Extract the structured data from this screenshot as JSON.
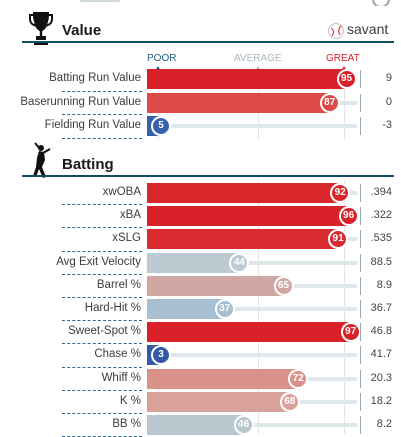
{
  "sections": {
    "value": {
      "title": "Value",
      "brand": "savant",
      "scale": {
        "poor": "POOR",
        "average": "AVERAGE",
        "great": "GREAT"
      },
      "rows": [
        {
          "label": "Batting Run Value",
          "percentile": 95,
          "value": "9",
          "color": "#d82129"
        },
        {
          "label": "Baserunning Run Value",
          "percentile": 87,
          "value": "0",
          "color": "#dc4b47"
        },
        {
          "label": "Fielding Run Value",
          "percentile": 5,
          "value": "-3",
          "color": "#3661ad"
        }
      ]
    },
    "batting": {
      "title": "Batting",
      "rows": [
        {
          "label": "xwOBA",
          "percentile": 92,
          "value": ".394",
          "color": "#d8282c"
        },
        {
          "label": "xBA",
          "percentile": 96,
          "value": ".322",
          "color": "#d82129"
        },
        {
          "label": "xSLG",
          "percentile": 91,
          "value": ".535",
          "color": "#d92b2f"
        },
        {
          "label": "Avg Exit Velocity",
          "percentile": 44,
          "value": "88.5",
          "color": "#bbcbd1"
        },
        {
          "label": "Barrel %",
          "percentile": 65,
          "value": "8.9",
          "color": "#cfa8a3"
        },
        {
          "label": "Hard-Hit %",
          "percentile": 37,
          "value": "36.7",
          "color": "#a7bfd1"
        },
        {
          "label": "Sweet-Spot %",
          "percentile": 97,
          "value": "46.8",
          "color": "#d82129"
        },
        {
          "label": "Chase %",
          "percentile": 3,
          "value": "41.7",
          "color": "#325aa8"
        },
        {
          "label": "Whiff %",
          "percentile": 72,
          "value": "20.3",
          "color": "#d8928a"
        },
        {
          "label": "K %",
          "percentile": 68,
          "value": "18.2",
          "color": "#d8a29b"
        },
        {
          "label": "BB %",
          "percentile": 46,
          "value": "8.2",
          "color": "#b8c8ce"
        }
      ]
    }
  },
  "icons": {
    "trophy": "trophy-icon",
    "savant_logo": "baseball-logo-icon",
    "batter": "batter-silhouette-icon"
  },
  "colors": {
    "section_rule": "#124c68",
    "great_label": "#d82129",
    "poor_label": "#1f5f8b",
    "average_label": "#a9b8be"
  }
}
